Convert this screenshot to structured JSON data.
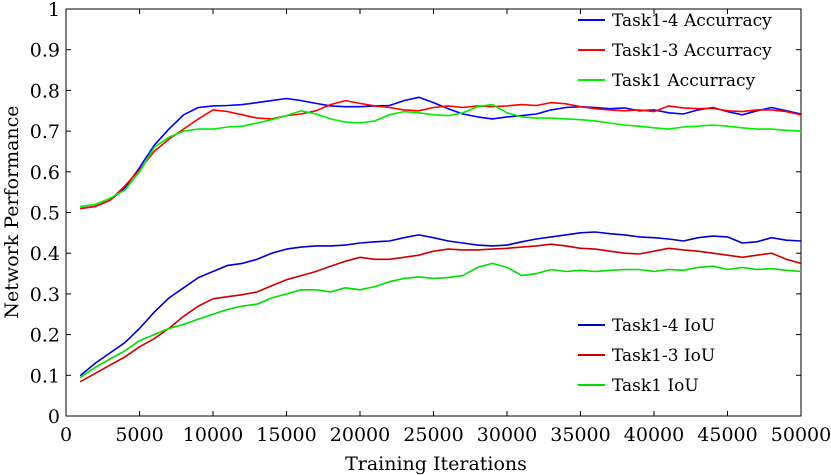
{
  "chart_data": {
    "type": "line",
    "xlabel": "Training Iterations",
    "ylabel": "Network Performance",
    "xlim": [
      0,
      50000
    ],
    "ylim": [
      0,
      1
    ],
    "grid": false,
    "x_ticks": [
      "0",
      "5000",
      "10000",
      "15000",
      "20000",
      "25000",
      "30000",
      "35000",
      "40000",
      "45000",
      "50000"
    ],
    "y_ticks": [
      "0",
      "0.1",
      "0.2",
      "0.3",
      "0.4",
      "0.5",
      "0.6",
      "0.7",
      "0.8",
      "0.9",
      "1"
    ],
    "legends": [
      {
        "placement": "top-right",
        "entries": [
          "Task1-4 Accurracy",
          "Task1-3 Accurracy",
          "Task1 Accurracy"
        ]
      },
      {
        "placement": "bottom-right",
        "entries": [
          "Task1-4 IoU",
          "Task1-3 IoU",
          "Task1 IoU"
        ]
      }
    ],
    "x": [
      1000,
      2000,
      3000,
      4000,
      5000,
      6000,
      7000,
      8000,
      9000,
      10000,
      11000,
      12000,
      13000,
      14000,
      15000,
      16000,
      17000,
      18000,
      19000,
      20000,
      21000,
      22000,
      23000,
      24000,
      25000,
      26000,
      27000,
      28000,
      29000,
      30000,
      31000,
      32000,
      33000,
      34000,
      35000,
      36000,
      37000,
      38000,
      39000,
      40000,
      41000,
      42000,
      43000,
      44000,
      45000,
      46000,
      47000,
      48000,
      49000,
      50000
    ],
    "series": [
      {
        "name": "Task1-4 Accurracy",
        "color": "#0000ff",
        "values": [
          0.51,
          0.515,
          0.53,
          0.56,
          0.61,
          0.665,
          0.705,
          0.74,
          0.758,
          0.762,
          0.763,
          0.765,
          0.77,
          0.775,
          0.78,
          0.775,
          0.768,
          0.762,
          0.76,
          0.76,
          0.762,
          0.763,
          0.775,
          0.783,
          0.77,
          0.755,
          0.742,
          0.735,
          0.73,
          0.735,
          0.738,
          0.742,
          0.752,
          0.758,
          0.76,
          0.758,
          0.755,
          0.757,
          0.75,
          0.752,
          0.745,
          0.742,
          0.752,
          0.758,
          0.748,
          0.74,
          0.75,
          0.758,
          0.75,
          0.742
        ]
      },
      {
        "name": "Task1-3 Accurracy",
        "color": "#ff0000",
        "values": [
          0.51,
          0.515,
          0.53,
          0.565,
          0.605,
          0.65,
          0.68,
          0.705,
          0.73,
          0.752,
          0.748,
          0.74,
          0.732,
          0.73,
          0.738,
          0.742,
          0.75,
          0.765,
          0.775,
          0.768,
          0.762,
          0.758,
          0.752,
          0.75,
          0.758,
          0.762,
          0.758,
          0.762,
          0.76,
          0.762,
          0.765,
          0.763,
          0.77,
          0.767,
          0.76,
          0.755,
          0.752,
          0.75,
          0.752,
          0.748,
          0.762,
          0.757,
          0.755,
          0.756,
          0.75,
          0.748,
          0.752,
          0.752,
          0.748,
          0.74
        ]
      },
      {
        "name": "Task1 Accurracy",
        "color": "#00ee00",
        "values": [
          0.515,
          0.52,
          0.535,
          0.555,
          0.6,
          0.66,
          0.685,
          0.7,
          0.705,
          0.705,
          0.71,
          0.712,
          0.72,
          0.728,
          0.738,
          0.75,
          0.742,
          0.73,
          0.722,
          0.72,
          0.725,
          0.74,
          0.748,
          0.745,
          0.74,
          0.738,
          0.745,
          0.76,
          0.765,
          0.745,
          0.735,
          0.732,
          0.732,
          0.73,
          0.728,
          0.725,
          0.72,
          0.715,
          0.712,
          0.708,
          0.705,
          0.71,
          0.712,
          0.715,
          0.712,
          0.708,
          0.705,
          0.705,
          0.702,
          0.7
        ]
      },
      {
        "name": "Task1-4 IoU",
        "color": "#0000cc",
        "values": [
          0.1,
          0.13,
          0.155,
          0.18,
          0.215,
          0.255,
          0.29,
          0.315,
          0.34,
          0.355,
          0.37,
          0.375,
          0.385,
          0.4,
          0.41,
          0.415,
          0.418,
          0.418,
          0.42,
          0.425,
          0.428,
          0.43,
          0.438,
          0.445,
          0.438,
          0.43,
          0.425,
          0.42,
          0.418,
          0.42,
          0.428,
          0.435,
          0.44,
          0.445,
          0.45,
          0.452,
          0.448,
          0.445,
          0.44,
          0.438,
          0.435,
          0.43,
          0.438,
          0.442,
          0.44,
          0.425,
          0.428,
          0.438,
          0.432,
          0.43
        ]
      },
      {
        "name": "Task1-3 IoU",
        "color": "#cc0000",
        "values": [
          0.085,
          0.105,
          0.125,
          0.145,
          0.17,
          0.19,
          0.215,
          0.245,
          0.27,
          0.288,
          0.293,
          0.298,
          0.305,
          0.32,
          0.335,
          0.345,
          0.355,
          0.368,
          0.38,
          0.39,
          0.385,
          0.385,
          0.39,
          0.395,
          0.405,
          0.41,
          0.408,
          0.408,
          0.41,
          0.412,
          0.415,
          0.418,
          0.422,
          0.418,
          0.412,
          0.41,
          0.405,
          0.4,
          0.398,
          0.405,
          0.412,
          0.408,
          0.405,
          0.4,
          0.395,
          0.39,
          0.395,
          0.4,
          0.385,
          0.375
        ]
      },
      {
        "name": "Task1 IoU",
        "color": "#00dd00",
        "values": [
          0.095,
          0.12,
          0.14,
          0.16,
          0.185,
          0.2,
          0.215,
          0.225,
          0.238,
          0.25,
          0.262,
          0.27,
          0.275,
          0.29,
          0.3,
          0.31,
          0.31,
          0.305,
          0.315,
          0.31,
          0.318,
          0.33,
          0.338,
          0.342,
          0.338,
          0.34,
          0.345,
          0.365,
          0.375,
          0.365,
          0.345,
          0.35,
          0.36,
          0.355,
          0.358,
          0.355,
          0.358,
          0.36,
          0.36,
          0.355,
          0.36,
          0.358,
          0.365,
          0.368,
          0.36,
          0.365,
          0.36,
          0.362,
          0.358,
          0.355
        ]
      }
    ]
  }
}
